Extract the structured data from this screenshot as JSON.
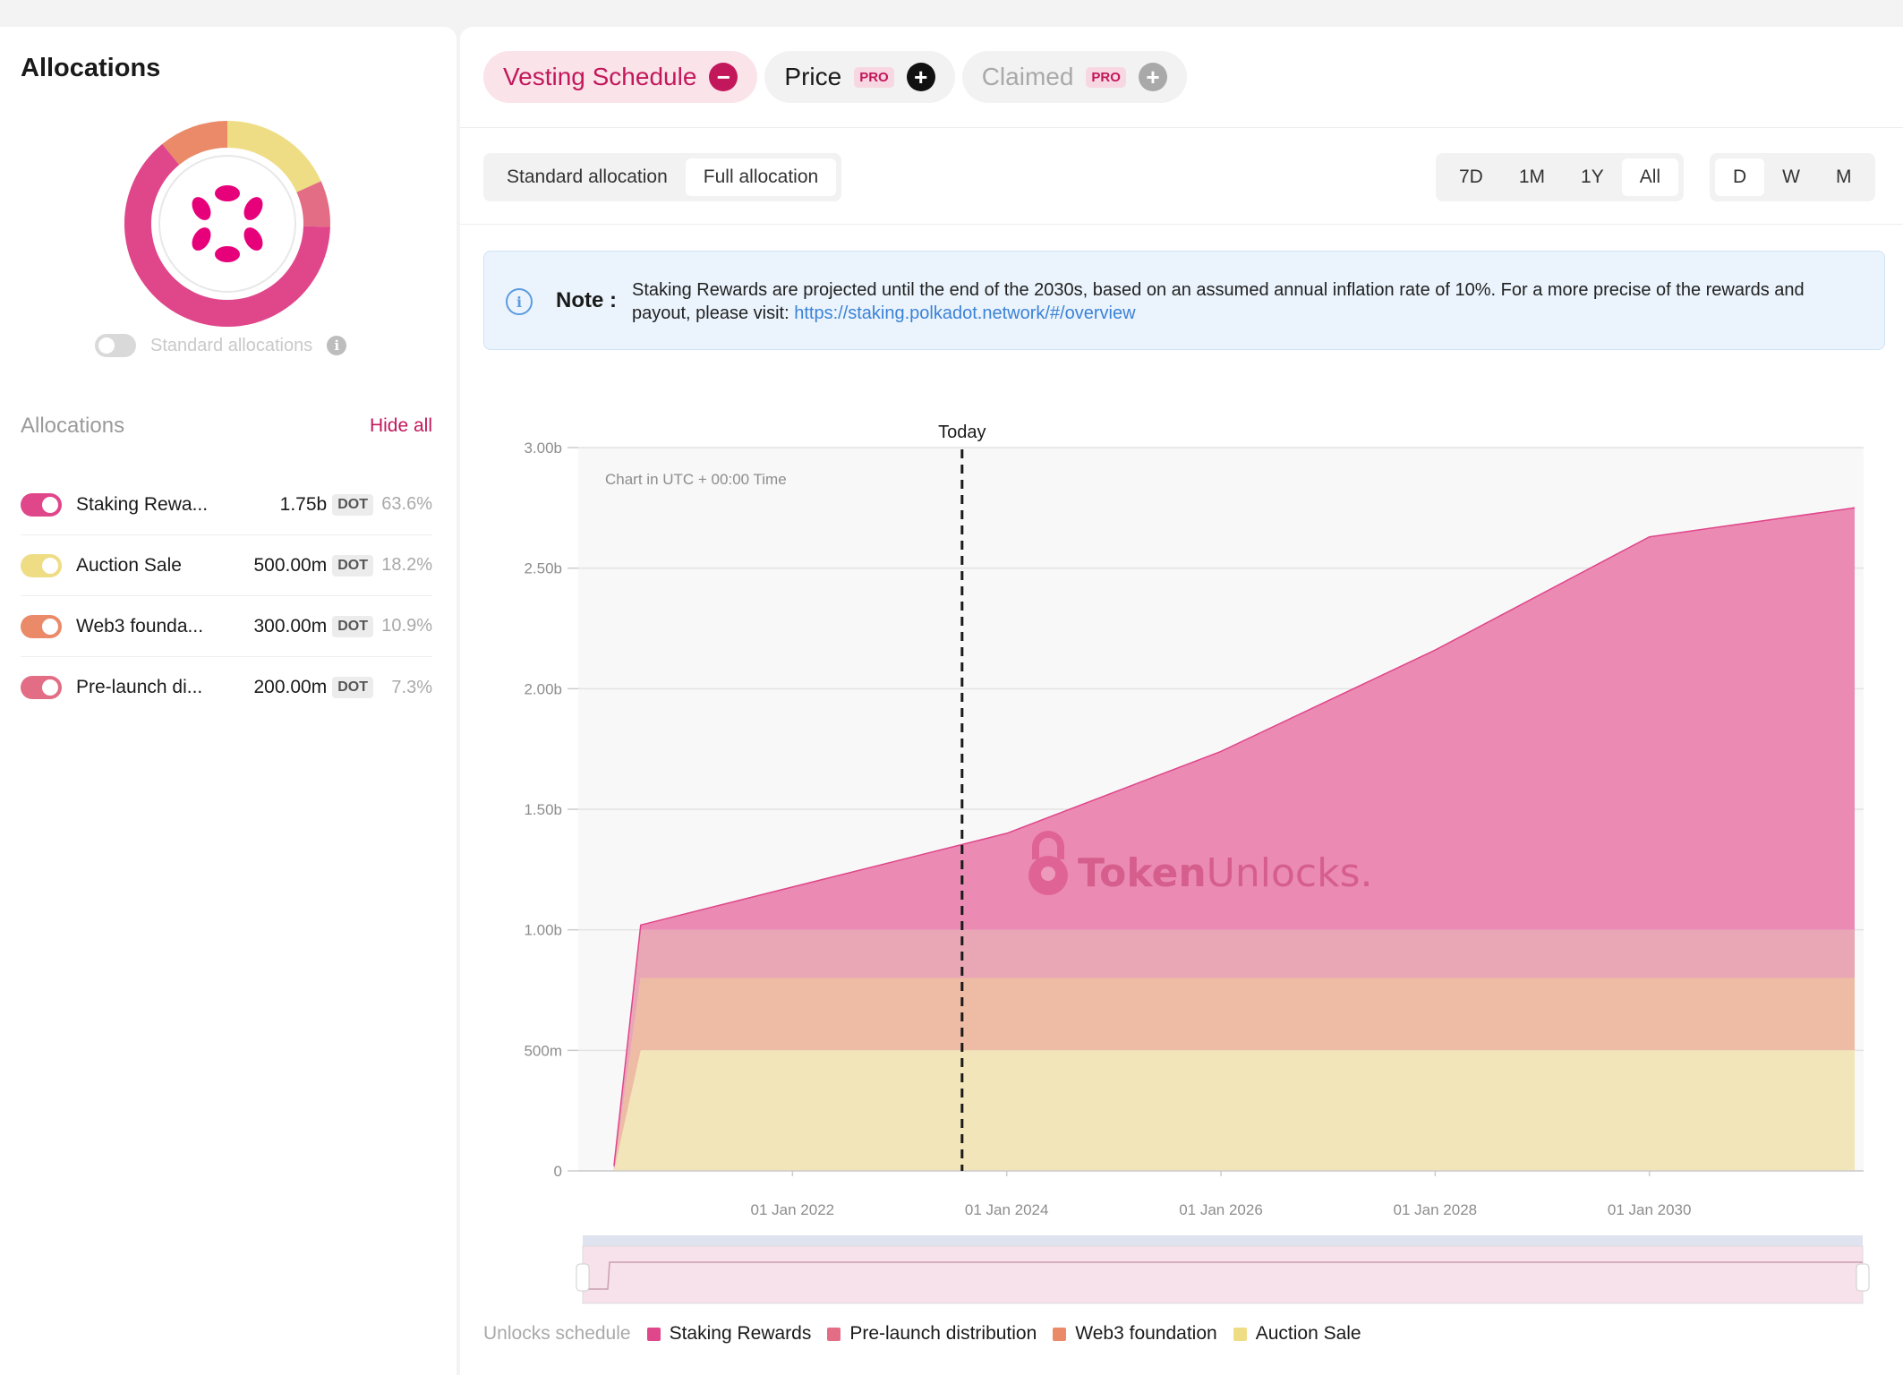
{
  "sidebar": {
    "title": "Allocations",
    "standard_toggle_label": "Standard allocations",
    "list_title": "Allocations",
    "hide_all": "Hide all",
    "items": [
      {
        "name": "Staking Rewa...",
        "amount": "1.75b",
        "unit": "DOT",
        "pct": "63.6%",
        "color": "#e0468a",
        "share": 0.636
      },
      {
        "name": "Auction Sale",
        "amount": "500.00m",
        "unit": "DOT",
        "pct": "18.2%",
        "color": "#efdd85",
        "share": 0.182
      },
      {
        "name": "Web3 founda...",
        "amount": "300.00m",
        "unit": "DOT",
        "pct": "10.9%",
        "color": "#ea8a68",
        "share": 0.109
      },
      {
        "name": "Pre-launch di...",
        "amount": "200.00m",
        "unit": "DOT",
        "pct": "7.3%",
        "color": "#e36d84",
        "share": 0.073
      }
    ]
  },
  "tabs": [
    {
      "label": "Vesting Schedule",
      "state": "active"
    },
    {
      "label": "Price",
      "badge": "PRO",
      "state": "normal"
    },
    {
      "label": "Claimed",
      "badge": "PRO",
      "state": "disabled"
    }
  ],
  "allocation_mode": [
    "Standard allocation",
    "Full allocation"
  ],
  "allocation_mode_selected": "Full allocation",
  "ranges": [
    "7D",
    "1M",
    "1Y",
    "All"
  ],
  "range_selected": "All",
  "granularity": [
    "D",
    "W",
    "M"
  ],
  "granularity_selected": "D",
  "note": {
    "label": "Note",
    "colon": ":",
    "text": "Staking Rewards are projected until the end of the 2030s, based on an assumed annual inflation rate of 10%. For a more precise of the rewards and payout, please visit: ",
    "link": "https://staking.polkadot.network/#/overview"
  },
  "chart": {
    "today_label": "Today",
    "utc_label": "Chart in UTC + 00:00 Time",
    "watermark_bold": "Token",
    "watermark_light": "Unlocks."
  },
  "chart_data": {
    "type": "area",
    "stacked": true,
    "x": [
      "2020-05",
      "2020-08",
      "2024-01",
      "2026-01",
      "2028-01",
      "2030-01",
      "2031-12"
    ],
    "x_ticks": [
      "01 Jan 2022",
      "01 Jan 2024",
      "01 Jan 2026",
      "01 Jan 2028",
      "01 Jan 2030"
    ],
    "y_ticks": [
      "0",
      "500m",
      "1.00b",
      "1.50b",
      "2.00b",
      "2.50b",
      "3.00b"
    ],
    "ylim": [
      0,
      3000000000
    ],
    "today": "2023-08",
    "series": [
      {
        "name": "Auction Sale",
        "color": "#f2e5b9",
        "values": [
          0,
          500000000,
          500000000,
          500000000,
          500000000,
          500000000,
          500000000
        ]
      },
      {
        "name": "Web3 foundation",
        "color": "#eebca4",
        "values": [
          0,
          300000000,
          300000000,
          300000000,
          300000000,
          300000000,
          300000000
        ]
      },
      {
        "name": "Pre-launch distribution",
        "color": "#e9a7b5",
        "values": [
          0,
          200000000,
          200000000,
          200000000,
          200000000,
          200000000,
          200000000
        ]
      },
      {
        "name": "Staking Rewards",
        "color": "#eb8bb4",
        "values": [
          20000000,
          20000000,
          400000000,
          740000000,
          1160000000,
          1630000000,
          1750000000
        ]
      }
    ]
  },
  "legend": {
    "title": "Unlocks schedule",
    "items": [
      {
        "name": "Staking Rewards",
        "color": "#e0468a"
      },
      {
        "name": "Pre-launch distribution",
        "color": "#e36d84"
      },
      {
        "name": "Web3 foundation",
        "color": "#ea8a68"
      },
      {
        "name": "Auction Sale",
        "color": "#efdd85"
      }
    ]
  },
  "colors": {
    "accent": "#c2185b",
    "polkadot": "#e6007a"
  }
}
